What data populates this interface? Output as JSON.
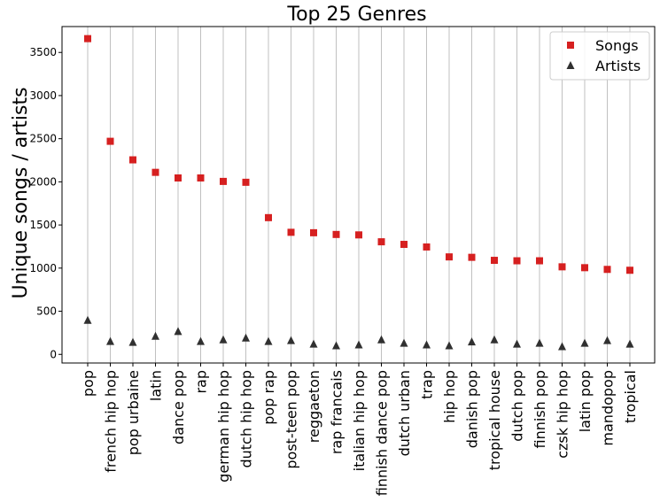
{
  "chart_data": {
    "type": "scatter",
    "title": "Top 25 Genres",
    "ylabel": "Unique songs / artists",
    "xlabel": "",
    "categories": [
      "pop",
      "french hip hop",
      "pop urbaine",
      "latin",
      "dance pop",
      "rap",
      "german hip hop",
      "dutch hip hop",
      "pop rap",
      "post-teen pop",
      "reggaeton",
      "rap francais",
      "italian hip hop",
      "finnish dance pop",
      "dutch urban",
      "trap",
      "hip hop",
      "danish pop",
      "tropical house",
      "dutch pop",
      "finnish pop",
      "czsk hip hop",
      "latin pop",
      "mandopop",
      "tropical"
    ],
    "series": [
      {
        "name": "Songs",
        "marker": "square",
        "color": "#d62020",
        "values": [
          3660,
          2470,
          2255,
          2110,
          2045,
          2045,
          2005,
          1995,
          1585,
          1415,
          1410,
          1390,
          1385,
          1305,
          1275,
          1245,
          1130,
          1125,
          1090,
          1085,
          1085,
          1015,
          1005,
          985,
          975
        ]
      },
      {
        "name": "Artists",
        "marker": "triangle",
        "color": "#303030",
        "values": [
          395,
          150,
          140,
          210,
          265,
          150,
          170,
          190,
          150,
          160,
          120,
          100,
          110,
          170,
          130,
          110,
          100,
          145,
          170,
          120,
          130,
          90,
          130,
          160,
          120
        ]
      }
    ],
    "ylim": [
      -100,
      3800
    ],
    "yticks": [
      0,
      500,
      1000,
      1500,
      2000,
      2500,
      3000,
      3500
    ],
    "grid": "vertical",
    "legend_position": "top-right"
  }
}
